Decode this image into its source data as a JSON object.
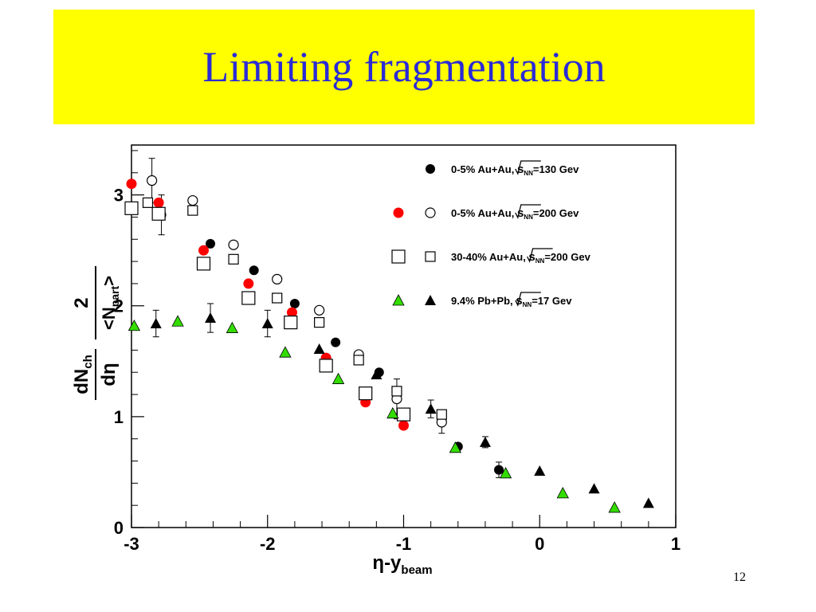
{
  "slide": {
    "title": "Limiting fragmentation",
    "page_number": "12"
  },
  "chart_data": {
    "type": "scatter",
    "title": "",
    "xlabel": "η-y",
    "xlabel_sub": "beam",
    "ylabel_main": "dN",
    "ylabel_main_sub": "ch",
    "ylabel_main_den": "dη",
    "ylabel_factor_num": "2",
    "ylabel_factor_den": "<N",
    "ylabel_factor_den_sub": "part",
    "ylabel_factor_den_close": ">",
    "xlim": [
      -3,
      1
    ],
    "ylim": [
      0,
      3.45
    ],
    "x_ticks": [
      {
        "value": -3,
        "label": "-3"
      },
      {
        "value": -2,
        "label": "-2"
      },
      {
        "value": -1,
        "label": "-1"
      },
      {
        "value": 0,
        "label": "0"
      },
      {
        "value": 1,
        "label": "1"
      }
    ],
    "y_ticks": [
      {
        "value": 0,
        "label": "0"
      },
      {
        "value": 1,
        "label": "1"
      },
      {
        "value": 2,
        "label": "2"
      },
      {
        "value": 3,
        "label": "3"
      }
    ],
    "legend": {
      "position": "top-right",
      "entries": [
        {
          "text": "0-5% Au+Au,",
          "sqrt": "s",
          "sub": "NN",
          "energy": "=130 Gev",
          "markers": [
            "filled-circle"
          ]
        },
        {
          "text": "0-5% Au+Au,",
          "sqrt": "s",
          "sub": "NN",
          "energy": "=200 Gev",
          "markers": [
            "red-circle",
            "open-circle"
          ]
        },
        {
          "text": "30-40% Au+Au,",
          "sqrt": "s",
          "sub": "NN",
          "energy": "=200 Gev",
          "markers": [
            "open-square-large",
            "open-square"
          ]
        },
        {
          "text": "9.4% Pb+Pb,",
          "sqrt": "s",
          "sub": "NN",
          "energy": "=17 Gev",
          "markers": [
            "green-triangle",
            "filled-triangle"
          ]
        }
      ]
    },
    "colors": {
      "red": "#ff0000",
      "green": "#33dd00",
      "black": "#000000"
    },
    "series": [
      {
        "marker": "filled-circle",
        "points": [
          {
            "x": -2.78,
            "y": 2.82,
            "err": 0.18
          },
          {
            "x": -2.42,
            "y": 2.56
          },
          {
            "x": -2.1,
            "y": 2.32
          },
          {
            "x": -1.8,
            "y": 2.02
          },
          {
            "x": -1.5,
            "y": 1.67
          },
          {
            "x": -1.18,
            "y": 1.4
          },
          {
            "x": -1.0,
            "y": 1.0
          },
          {
            "x": -0.6,
            "y": 0.73
          },
          {
            "x": -0.3,
            "y": 0.52,
            "err": 0.07
          }
        ]
      },
      {
        "marker": "open-circle",
        "points": [
          {
            "x": -2.85,
            "y": 3.13,
            "err": 0.2
          },
          {
            "x": -2.55,
            "y": 2.95
          },
          {
            "x": -2.25,
            "y": 2.55
          },
          {
            "x": -1.93,
            "y": 2.24
          },
          {
            "x": -1.62,
            "y": 1.96
          },
          {
            "x": -1.33,
            "y": 1.56
          },
          {
            "x": -1.05,
            "y": 1.16,
            "err": 0.18
          },
          {
            "x": -0.72,
            "y": 0.95,
            "err": 0.1
          }
        ]
      },
      {
        "marker": "red-circle",
        "points": [
          {
            "x": -3.0,
            "y": 3.1
          },
          {
            "x": -2.8,
            "y": 2.93
          },
          {
            "x": -2.47,
            "y": 2.5
          },
          {
            "x": -2.14,
            "y": 2.2
          },
          {
            "x": -1.82,
            "y": 1.94
          },
          {
            "x": -1.57,
            "y": 1.53
          },
          {
            "x": -1.28,
            "y": 1.13
          },
          {
            "x": -1.0,
            "y": 0.92
          }
        ]
      },
      {
        "marker": "open-square",
        "points": [
          {
            "x": -2.88,
            "y": 2.93
          },
          {
            "x": -2.55,
            "y": 2.86
          },
          {
            "x": -2.25,
            "y": 2.42
          },
          {
            "x": -1.93,
            "y": 2.07
          },
          {
            "x": -1.62,
            "y": 1.85
          },
          {
            "x": -1.33,
            "y": 1.51
          },
          {
            "x": -1.05,
            "y": 1.23
          },
          {
            "x": -0.72,
            "y": 1.02
          }
        ]
      },
      {
        "marker": "open-square-large",
        "points": [
          {
            "x": -3.0,
            "y": 2.88
          },
          {
            "x": -2.8,
            "y": 2.83
          },
          {
            "x": -2.47,
            "y": 2.38
          },
          {
            "x": -2.14,
            "y": 2.07
          },
          {
            "x": -1.83,
            "y": 1.85
          },
          {
            "x": -1.57,
            "y": 1.46
          },
          {
            "x": -1.28,
            "y": 1.21
          },
          {
            "x": -1.0,
            "y": 1.02
          }
        ]
      },
      {
        "marker": "filled-triangle",
        "points": [
          {
            "x": -2.82,
            "y": 1.84,
            "err": 0.12
          },
          {
            "x": -2.42,
            "y": 1.89,
            "err": 0.13
          },
          {
            "x": -2.0,
            "y": 1.84,
            "err": 0.12
          },
          {
            "x": -1.62,
            "y": 1.61
          },
          {
            "x": -1.2,
            "y": 1.38
          },
          {
            "x": -0.8,
            "y": 1.07,
            "err": 0.08
          },
          {
            "x": -0.4,
            "y": 0.77,
            "err": 0.05
          },
          {
            "x": 0.0,
            "y": 0.51
          },
          {
            "x": 0.4,
            "y": 0.35
          },
          {
            "x": 0.8,
            "y": 0.22
          }
        ]
      },
      {
        "marker": "green-triangle",
        "points": [
          {
            "x": -2.98,
            "y": 1.82
          },
          {
            "x": -2.66,
            "y": 1.86
          },
          {
            "x": -2.26,
            "y": 1.8
          },
          {
            "x": -1.87,
            "y": 1.58
          },
          {
            "x": -1.48,
            "y": 1.34
          },
          {
            "x": -1.08,
            "y": 1.03
          },
          {
            "x": -0.62,
            "y": 0.72
          },
          {
            "x": -0.25,
            "y": 0.49
          },
          {
            "x": 0.17,
            "y": 0.31
          },
          {
            "x": 0.55,
            "y": 0.18
          }
        ]
      }
    ]
  }
}
